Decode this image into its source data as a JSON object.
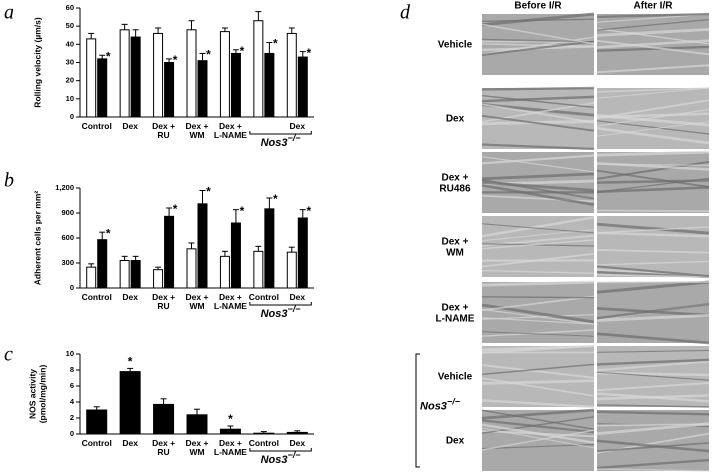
{
  "chart_data": [
    {
      "type": "bar",
      "panel": "a",
      "ylabel": [
        "Rolling velocity (µm/s)"
      ],
      "categories": [
        "Control",
        "Dex",
        "Dex +\nRU",
        "Dex +\nWM",
        "Dex +\nL-NAME",
        null,
        "Dex"
      ],
      "series": [
        {
          "color": "#ffffff",
          "values": [
            43,
            48,
            46,
            48,
            47,
            53,
            46
          ],
          "errors": [
            3,
            3,
            3,
            5,
            2,
            5,
            3
          ]
        },
        {
          "color": "#000000",
          "values": [
            32,
            44,
            30,
            31,
            35,
            35,
            33
          ],
          "errors": [
            2,
            4,
            2,
            4,
            2,
            6,
            3
          ]
        }
      ],
      "ylim": [
        0,
        60
      ],
      "yticks": [
        0,
        10,
        20,
        30,
        40,
        50,
        60
      ],
      "annotations": [
        {
          "text": "*",
          "series": 1,
          "index": 0
        },
        {
          "text": "*",
          "series": 1,
          "index": 2
        },
        {
          "text": "*",
          "series": 1,
          "index": 3
        },
        {
          "text": "*",
          "series": 1,
          "index": 4
        },
        {
          "text": "*",
          "series": 1,
          "index": 5
        },
        {
          "text": "*",
          "series": 1,
          "index": 6
        }
      ],
      "group_label": {
        "gene": "Nos3",
        "genotype": "−/−",
        "from": 5,
        "to": 6
      }
    },
    {
      "type": "bar",
      "panel": "b",
      "ylabel": [
        "Adherent cells per mm²"
      ],
      "categories": [
        "Control",
        "Dex",
        "Dex +\nRU",
        "Dex +\nWM",
        "Dex +\nL-NAME",
        "Control",
        "Dex"
      ],
      "series": [
        {
          "color": "#ffffff",
          "values": [
            250,
            330,
            220,
            470,
            380,
            440,
            430
          ],
          "errors": [
            40,
            50,
            30,
            70,
            60,
            60,
            60
          ]
        },
        {
          "color": "#000000",
          "values": [
            580,
            330,
            860,
            1010,
            780,
            950,
            840
          ],
          "errors": [
            90,
            50,
            100,
            160,
            160,
            130,
            100
          ]
        }
      ],
      "ylim": [
        0,
        1200
      ],
      "yticks": [
        0,
        300,
        600,
        900,
        {
          "value": 1200,
          "label": "1,200"
        }
      ],
      "annotations": [
        {
          "text": "*",
          "series": 1,
          "index": 0
        },
        {
          "text": "*",
          "series": 1,
          "index": 2
        },
        {
          "text": "*",
          "series": 1,
          "index": 3
        },
        {
          "text": "*",
          "series": 1,
          "index": 4
        },
        {
          "text": "*",
          "series": 1,
          "index": 5
        },
        {
          "text": "*",
          "series": 1,
          "index": 6
        }
      ],
      "group_label": {
        "gene": "Nos3",
        "genotype": "−/−",
        "from": 5,
        "to": 6
      }
    },
    {
      "type": "bar",
      "panel": "c",
      "ylabel": [
        "NOS activity",
        "(pmol/mg/min)"
      ],
      "categories": [
        "Control",
        "Dex",
        "Dex +\nRU",
        "Dex +\nWM",
        "Dex +\nL-NAME",
        "Control",
        "Dex"
      ],
      "series": [
        {
          "color": "#000000",
          "values": [
            3.0,
            7.8,
            3.7,
            2.4,
            0.6,
            0.1,
            0.2
          ],
          "errors": [
            0.4,
            0.4,
            0.7,
            0.7,
            0.4,
            0.2,
            0.2
          ]
        }
      ],
      "ylim": [
        0,
        10
      ],
      "yticks": [
        0,
        2,
        4,
        6,
        8,
        10
      ],
      "annotations": [
        {
          "text": "*",
          "series": 0,
          "index": 1
        },
        {
          "text": "*",
          "series": 0,
          "index": 4
        }
      ],
      "group_label": {
        "gene": "Nos3",
        "genotype": "−/−",
        "from": 5,
        "to": 6
      }
    }
  ],
  "panel_d": {
    "panel": "d",
    "columns": [
      "Before I/R",
      "After I/R"
    ],
    "rows": [
      "Vehicle",
      "Dex",
      "Dex +\nRU486",
      "Dex +\nWM",
      "Dex +\nL-NAME",
      "Vehicle",
      "Dex"
    ],
    "group_label": {
      "gene": "Nos3",
      "genotype": "−/−",
      "from": 5,
      "to": 6
    }
  }
}
